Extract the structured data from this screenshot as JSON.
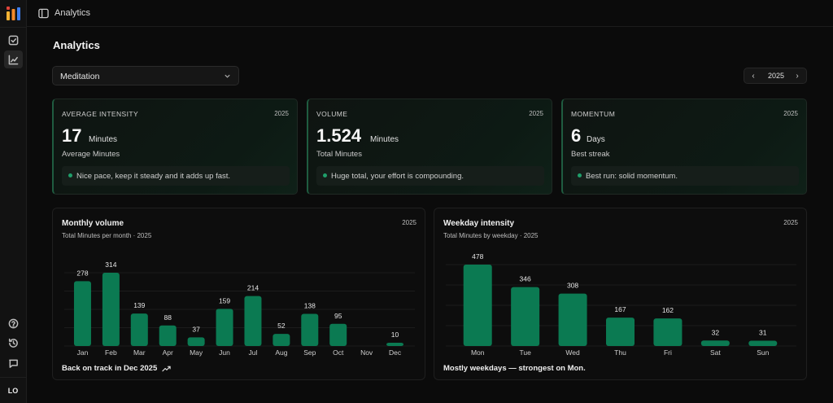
{
  "topbar": {
    "title": "Analytics"
  },
  "page": {
    "title": "Analytics"
  },
  "filter": {
    "selected": "Meditation"
  },
  "year_nav": {
    "year": "2025",
    "prev": "‹",
    "next": "›"
  },
  "sidebar": {
    "items": [
      {
        "icon": "checkbox-icon"
      },
      {
        "icon": "chart-line-icon",
        "active": true
      }
    ],
    "bottom": [
      {
        "icon": "help-icon"
      },
      {
        "icon": "history-icon"
      },
      {
        "icon": "message-icon"
      }
    ],
    "avatar": "LO"
  },
  "stats": [
    {
      "label": "AVERAGE INTENSITY",
      "year": "2025",
      "value": "17",
      "unit": "Minutes",
      "sub": "Average Minutes",
      "note": "Nice pace, keep it steady and it adds up fast."
    },
    {
      "label": "VOLUME",
      "year": "2025",
      "value": "1.524",
      "unit": "Minutes",
      "sub": "Total Minutes",
      "note": "Huge total, your effort is compounding."
    },
    {
      "label": "MOMENTUM",
      "year": "2025",
      "value": "6",
      "unit": "Days",
      "sub": "Best streak",
      "note": "Best run: solid momentum."
    }
  ],
  "colors": {
    "bar": "#0b7a52",
    "accent": "#1f9e6a",
    "grid": "#1c1c1c"
  },
  "chart_data": [
    {
      "type": "bar",
      "title": "Monthly volume",
      "subtitle": "Total Minutes per month · 2025",
      "year": "2025",
      "categories": [
        "Jan",
        "Feb",
        "Mar",
        "Apr",
        "May",
        "Jun",
        "Jul",
        "Aug",
        "Sep",
        "Oct",
        "Nov",
        "Dec"
      ],
      "values": [
        278,
        314,
        139,
        88,
        37,
        159,
        214,
        52,
        138,
        95,
        0,
        10
      ],
      "labels": [
        "278",
        "314",
        "139",
        "88",
        "37",
        "159",
        "214",
        "52",
        "138",
        "95",
        "",
        "10"
      ],
      "ylim": [
        0,
        314
      ],
      "grid": true,
      "footer": "Back on track in Dec 2025"
    },
    {
      "type": "bar",
      "title": "Weekday intensity",
      "subtitle": "Total Minutes by weekday · 2025",
      "year": "2025",
      "categories": [
        "Mon",
        "Tue",
        "Wed",
        "Thu",
        "Fri",
        "Sat",
        "Sun"
      ],
      "values": [
        478,
        346,
        308,
        167,
        162,
        32,
        31
      ],
      "labels": [
        "478",
        "346",
        "308",
        "167",
        "162",
        "32",
        "31"
      ],
      "ylim": [
        0,
        478
      ],
      "grid": true,
      "footer": "Mostly weekdays — strongest on Mon."
    }
  ]
}
